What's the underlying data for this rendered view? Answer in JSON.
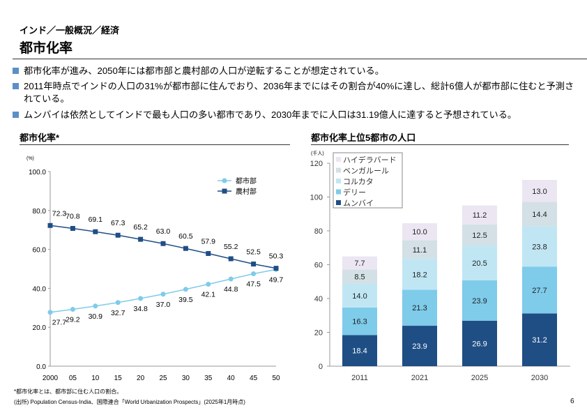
{
  "header": {
    "breadcrumb": "インド／一般概況／経済",
    "title": "都市化率"
  },
  "bullets": [
    "都市化率が進み、2050年には都市部と農村部の人口が逆転することが想定されている。",
    "2011年時点でインドの人口の31%が都市部に住んでおり、2036年までにはその割合が40%に達し、総計6億人が都市部に住むと予測されている。",
    "ムンバイは依然としてインドで最も人口の多い都市であり、2030年までに人口は31.19億人に達すると予想されている。"
  ],
  "sections": {
    "left": "都市化率*",
    "right": "都市化率上位5都市の人口"
  },
  "footnotes": [
    "*都市化率とは、都市部に住む人口の割合。",
    "(出所) Population Census-India、国際連合「World Urbanization Prospects」(2025年1月時点)"
  ],
  "page_number": "6",
  "chart_data": [
    {
      "type": "line",
      "unit": "(%)",
      "categories": [
        "2000",
        "05",
        "10",
        "15",
        "20",
        "25",
        "30",
        "35",
        "40",
        "45",
        "50"
      ],
      "ylim": [
        0,
        100
      ],
      "yticks": [
        "0.0",
        "20.0",
        "40.0",
        "60.0",
        "80.0",
        "100.0"
      ],
      "legend": "top-right",
      "series": [
        {
          "name": "都市部",
          "color": "#7ecbea",
          "marker": "circle",
          "values": [
            27.7,
            29.2,
            30.9,
            32.7,
            34.8,
            37.0,
            39.5,
            42.1,
            44.8,
            47.5,
            49.7
          ]
        },
        {
          "name": "農村部",
          "color": "#1f4e85",
          "marker": "square",
          "values": [
            72.3,
            70.8,
            69.1,
            67.3,
            65.2,
            63.0,
            60.5,
            57.9,
            55.2,
            52.5,
            50.3
          ]
        }
      ]
    },
    {
      "type": "bar",
      "stacked": true,
      "unit": "(千人)",
      "categories": [
        "2011",
        "2021",
        "2025",
        "2030"
      ],
      "ylim": [
        0,
        120
      ],
      "yticks": [
        "0",
        "20",
        "40",
        "60",
        "80",
        "100",
        "120"
      ],
      "legend": "top-left",
      "series": [
        {
          "name": "ムンバイ",
          "color": "#1f4e85",
          "values": [
            18.4,
            23.9,
            26.9,
            31.2
          ]
        },
        {
          "name": "デリー",
          "color": "#7ecbea",
          "values": [
            16.3,
            21.3,
            23.9,
            27.7
          ]
        },
        {
          "name": "コルカタ",
          "color": "#c0e6f4",
          "values": [
            14.0,
            18.2,
            20.5,
            23.8
          ]
        },
        {
          "name": "ベンガルール",
          "color": "#d3e0e6",
          "values": [
            8.5,
            11.1,
            12.5,
            14.4
          ]
        },
        {
          "name": "ハイデラバード",
          "color": "#ebe6f2",
          "values": [
            7.7,
            10.0,
            11.2,
            13.0
          ]
        }
      ]
    }
  ]
}
